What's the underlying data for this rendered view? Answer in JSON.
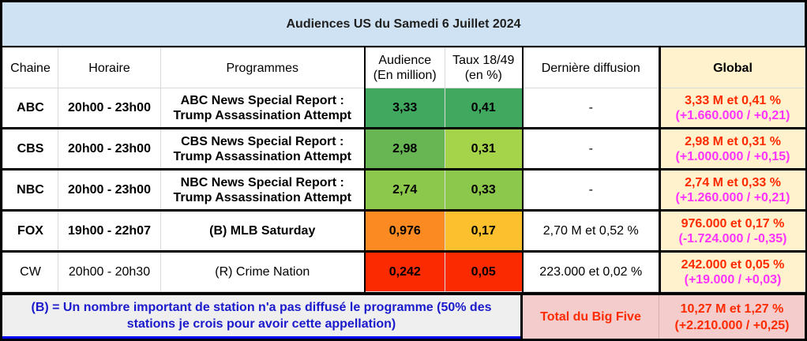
{
  "title": "Audiences US du Samedi 6 Juillet 2024",
  "headers": {
    "chaine": "Chaine",
    "horaire": "Horaire",
    "programmes": "Programmes",
    "audience_line1": "Audience",
    "audience_line2": "(En million)",
    "taux_line1": "Taux 18/49",
    "taux_line2": "(en %)",
    "derniere": "Dernière diffusion",
    "global": "Global"
  },
  "rows": [
    {
      "chaine": "ABC",
      "horaire": "20h00 - 23h00",
      "programme_line1": "ABC News Special Report :",
      "programme_line2": "Trump Assassination Attempt",
      "audience": "3,33",
      "taux": "0,41",
      "derniere": "-",
      "global_main": "3,33 M et 0,41 %",
      "global_diff": "(+1.660.000 / +0,21)",
      "style": "red",
      "audience_color": "#41a85f",
      "taux_color": "#41a85f"
    },
    {
      "chaine": "CBS",
      "horaire": "20h00 - 23h00",
      "programme_line1": "CBS News Special Report :",
      "programme_line2": "Trump Assassination Attempt",
      "audience": "2,98",
      "taux": "0,31",
      "derniere": "-",
      "global_main": "2,98 M et 0,31 %",
      "global_diff": "(+1.000.000 / +0,15)",
      "style": "red",
      "audience_color": "#67b653",
      "taux_color": "#a5d44a"
    },
    {
      "chaine": "NBC",
      "horaire": "20h00 - 23h00",
      "programme_line1": "NBC News Special Report :",
      "programme_line2": "Trump Assassination Attempt",
      "audience": "2,74",
      "taux": "0,33",
      "derniere": "-",
      "global_main": "2,74 M et 0,33 %",
      "global_diff": "(+1.260.000 / +0,21)",
      "style": "red",
      "audience_color": "#8cc84b",
      "taux_color": "#8cc84b"
    },
    {
      "chaine": "FOX",
      "horaire": "19h00 - 22h07",
      "programme_line1": "(B) MLB Saturday",
      "programme_line2": "",
      "audience": "0,976",
      "taux": "0,17",
      "derniere": "2,70 M et 0,52 %",
      "global_main": "976.000 et 0,17 %",
      "global_diff": "(-1.724.000 / -0,35)",
      "style": "bold",
      "audience_color": "#fb8a22",
      "taux_color": "#fcbf2e"
    },
    {
      "chaine": "CW",
      "horaire": "20h00 - 20h30",
      "programme_line1": "(R) Crime Nation",
      "programme_line2": "",
      "audience": "0,242",
      "taux": "0,05",
      "derniere": "223.000 et 0,02 %",
      "global_main": "242.000 et 0,05 %",
      "global_diff": "(+19.000 / +0,03)",
      "style": "plain",
      "audience_color": "#fb2a00",
      "taux_color": "#fb2a00"
    }
  ],
  "footer": {
    "note": "(B) = Un nombre important de station n'a pas diffusé le programme (50% des stations je crois pour avoir cette appellation)",
    "total_label": "Total du Big Five",
    "total_main": "10,27 M et 1,27 %",
    "total_diff": "(+2.210.000 / +0,25)"
  }
}
